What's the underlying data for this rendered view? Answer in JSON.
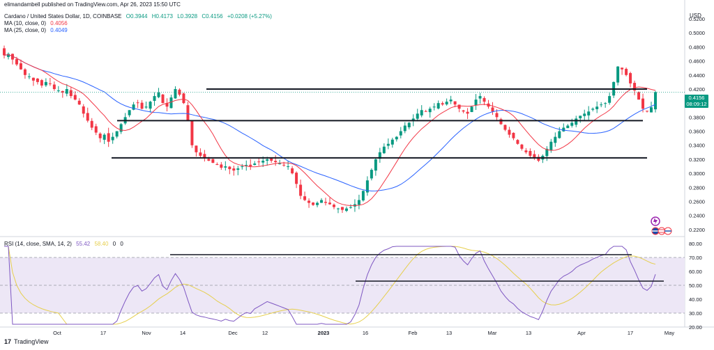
{
  "header": {
    "published_by": "elimandambell published on TradingView.com, Apr 26, 2023 15:50 UTC",
    "symbol": "Cardano / United States Dollar, 1D, COINBASE",
    "open": "O0.3944",
    "high": "H0.4173",
    "low": "L0.3928",
    "close": "C0.4156",
    "change": "+0.0208 (+5.27%)",
    "ma10_label": "MA (10, close, 0)",
    "ma10_value": "0.4056",
    "ma25_label": "MA (25, close, 0)",
    "ma25_value": "0.4049",
    "rsi_label": "RSI (14, close, SMA, 14, 2)",
    "rsi_value": "55.42",
    "rsi_ma_value": "58.40",
    "rsi_extra1": "0",
    "rsi_extra2": "0"
  },
  "price_tag": {
    "price": "0.4156",
    "countdown": "08:09:12"
  },
  "currency": "USD",
  "footer": {
    "brand": "TradingView"
  },
  "colors": {
    "up": "#089981",
    "down": "#f23645",
    "ma10": "#f23645",
    "ma25": "#2962ff",
    "rsi": "#7e57c2",
    "rsi_ma": "#e6cf4e",
    "band": "#ede7f6"
  },
  "chart_data": [
    {
      "type": "candlestick",
      "title": "Cardano / United States Dollar, 1D, COINBASE",
      "ylim": [
        0.21,
        0.52
      ],
      "y_ticks": [
        "0.5200",
        "0.5000",
        "0.4800",
        "0.4600",
        "0.4400",
        "0.4200",
        "0.4000",
        "0.3800",
        "0.3600",
        "0.3400",
        "0.3200",
        "0.3000",
        "0.2800",
        "0.2600",
        "0.2400",
        "0.2200"
      ],
      "x_ticks": [
        "Oct",
        "17",
        "Nov",
        "14",
        "Dec",
        "12",
        "2023",
        "16",
        "Feb",
        "13",
        "Mar",
        "13",
        "Apr",
        "17",
        "May"
      ],
      "close_series": [
        0.468,
        0.47,
        0.462,
        0.455,
        0.448,
        0.44,
        0.438,
        0.432,
        0.43,
        0.425,
        0.43,
        0.428,
        0.42,
        0.418,
        0.415,
        0.42,
        0.41,
        0.405,
        0.398,
        0.385,
        0.375,
        0.365,
        0.358,
        0.35,
        0.355,
        0.345,
        0.352,
        0.36,
        0.37,
        0.38,
        0.39,
        0.398,
        0.4,
        0.392,
        0.395,
        0.402,
        0.41,
        0.415,
        0.4,
        0.395,
        0.408,
        0.42,
        0.412,
        0.4,
        0.375,
        0.34,
        0.33,
        0.325,
        0.322,
        0.318,
        0.315,
        0.312,
        0.308,
        0.31,
        0.306,
        0.304,
        0.307,
        0.31,
        0.312,
        0.31,
        0.314,
        0.316,
        0.318,
        0.32,
        0.318,
        0.316,
        0.314,
        0.312,
        0.31,
        0.3,
        0.285,
        0.268,
        0.262,
        0.258,
        0.255,
        0.258,
        0.262,
        0.258,
        0.256,
        0.252,
        0.25,
        0.248,
        0.25,
        0.252,
        0.256,
        0.262,
        0.275,
        0.29,
        0.305,
        0.32,
        0.33,
        0.338,
        0.342,
        0.348,
        0.352,
        0.36,
        0.368,
        0.372,
        0.378,
        0.385,
        0.39,
        0.388,
        0.392,
        0.395,
        0.4,
        0.398,
        0.402,
        0.405,
        0.398,
        0.392,
        0.388,
        0.385,
        0.395,
        0.405,
        0.41,
        0.402,
        0.395,
        0.388,
        0.38,
        0.37,
        0.362,
        0.355,
        0.35,
        0.342,
        0.335,
        0.33,
        0.325,
        0.322,
        0.318,
        0.325,
        0.335,
        0.345,
        0.352,
        0.36,
        0.365,
        0.368,
        0.372,
        0.378,
        0.382,
        0.385,
        0.388,
        0.392,
        0.395,
        0.398,
        0.4,
        0.41,
        0.43,
        0.452,
        0.448,
        0.44,
        0.428,
        0.418,
        0.405,
        0.392,
        0.388,
        0.394,
        0.4156
      ],
      "horizontal_levels": [
        0.42,
        0.375,
        0.322
      ],
      "series": [
        {
          "name": "MA (10, close, 0)",
          "last": 0.4056
        },
        {
          "name": "MA (25, close, 0)",
          "last": 0.4049
        }
      ]
    },
    {
      "type": "line",
      "title": "RSI (14, close, SMA, 14, 2)",
      "ylim": [
        20,
        80
      ],
      "y_ticks": [
        "80.00",
        "70.00",
        "60.00",
        "50.00",
        "40.00",
        "30.00",
        "20.00"
      ],
      "band": [
        30,
        70
      ],
      "mid": 50,
      "horizontal_levels": [
        72,
        53
      ],
      "rsi_last": 55.42,
      "rsi_ma_last": 58.4
    }
  ]
}
